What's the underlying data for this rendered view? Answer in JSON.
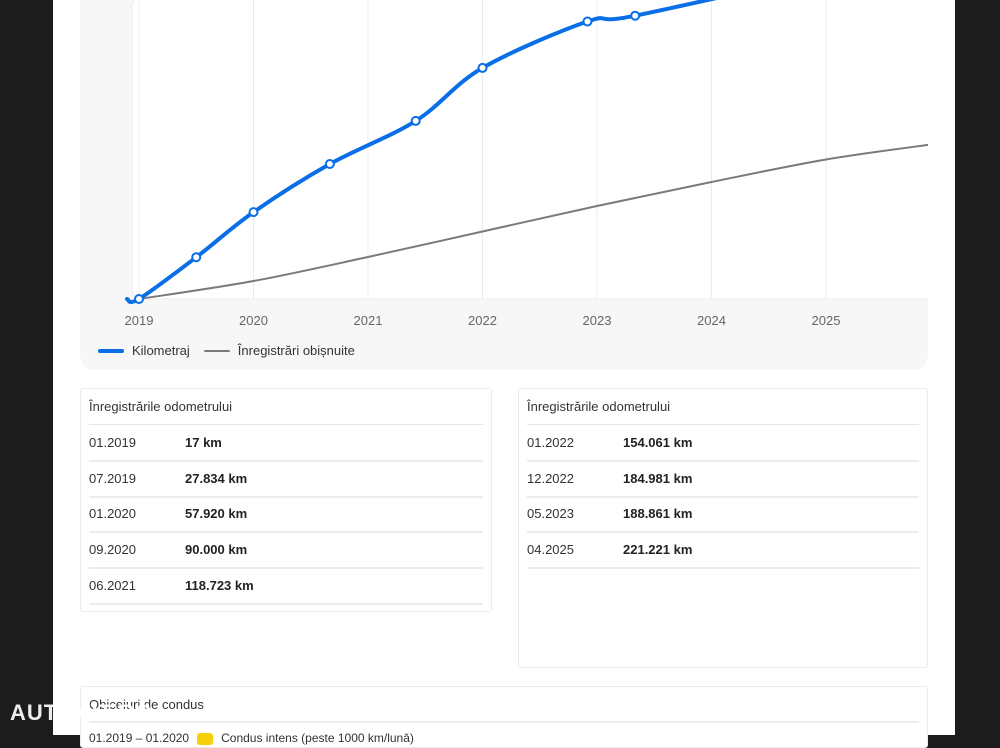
{
  "colors": {
    "primary": "#0a6ee6",
    "secondary": "#7a7a7a",
    "badge": "#f5d10c"
  },
  "chart_data": {
    "type": "line",
    "x_ticks": [
      "2019",
      "2020",
      "2021",
      "2022",
      "2023",
      "2024",
      "2025"
    ],
    "series": [
      {
        "name": "Kilometraj",
        "x": [
          "01.2019",
          "07.2019",
          "01.2020",
          "09.2020",
          "06.2021",
          "01.2022",
          "12.2022",
          "05.2023",
          "04.2025"
        ],
        "values": [
          17,
          27834,
          57920,
          90000,
          118723,
          154061,
          184981,
          188861,
          221221
        ]
      },
      {
        "name": "Înregistrări obișnuite",
        "x": [
          "01.2019",
          "2020",
          "2021",
          "2022",
          "2023",
          "2024",
          "2025",
          "12.2025"
        ],
        "values": [
          0,
          12000,
          28000,
          45000,
          62000,
          78000,
          93000,
          103000
        ]
      }
    ],
    "legend": "bottom-left",
    "grid": true
  },
  "legend": {
    "primary": "Kilometraj",
    "secondary": "Înregistrări obișnuite"
  },
  "table_left": {
    "title": "Înregistrările odometrului",
    "rows": [
      {
        "date": "01.2019",
        "km": "17 km"
      },
      {
        "date": "07.2019",
        "km": "27.834 km"
      },
      {
        "date": "01.2020",
        "km": "57.920 km"
      },
      {
        "date": "09.2020",
        "km": "90.000 km"
      },
      {
        "date": "06.2021",
        "km": "118.723 km"
      }
    ]
  },
  "table_right": {
    "title": "Înregistrările odometrului",
    "rows": [
      {
        "date": "01.2022",
        "km": "154.061 km"
      },
      {
        "date": "12.2022",
        "km": "184.981 km"
      },
      {
        "date": "05.2023",
        "km": "188.861 km"
      },
      {
        "date": "04.2025",
        "km": "221.221 km"
      }
    ]
  },
  "habits": {
    "title": "Obiceiuri de condus",
    "period": "01.2019 – 01.2020",
    "text": "Condus intens (peste 1000 km/lună)"
  },
  "logo": "AUTOVIT.RO"
}
